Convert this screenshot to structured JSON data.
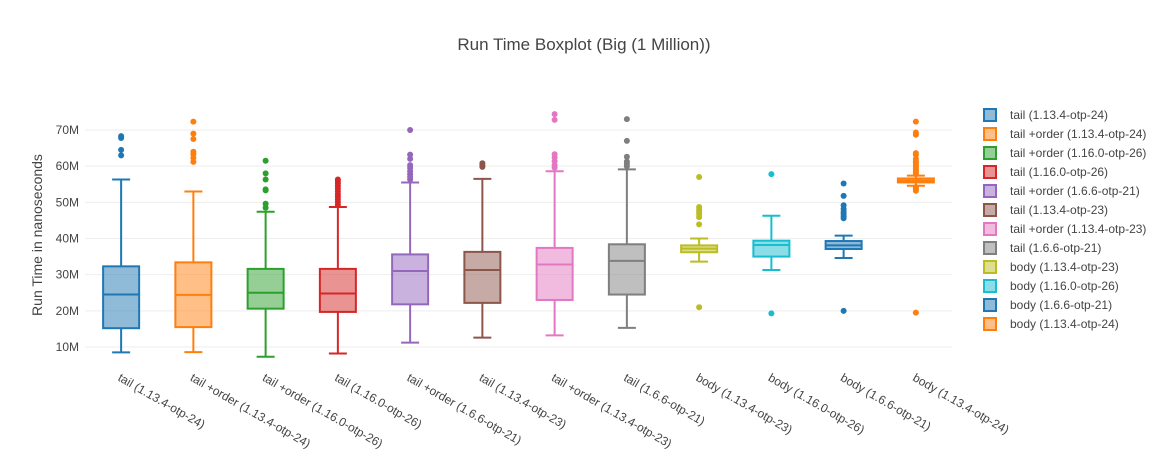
{
  "chart_data": {
    "type": "box",
    "title": "Run Time Boxplot (Big (1 Million))",
    "xlabel": "",
    "ylabel": "Run Time in nanoseconds",
    "ylim": [
      5,
      78
    ],
    "y_ticks": [
      10,
      20,
      30,
      40,
      50,
      60,
      70
    ],
    "y_tick_labels": [
      "10M",
      "20M",
      "30M",
      "40M",
      "50M",
      "60M",
      "70M"
    ],
    "grid": true,
    "legend_position": "right",
    "series": [
      {
        "name": "tail (1.13.4-otp-24)",
        "color": "#1f77b4",
        "min": 8.5,
        "q1": 15.2,
        "median": 24.5,
        "q3": 32.3,
        "max": 56.3,
        "outliers": [
          63.0,
          64.5,
          67.8,
          68.3
        ]
      },
      {
        "name": "tail +order (1.13.4-otp-24)",
        "color": "#ff7f0e",
        "min": 8.6,
        "q1": 15.5,
        "median": 24.4,
        "q3": 33.4,
        "max": 53.0,
        "outliers": [
          61.2,
          62.3,
          63.3,
          64.0,
          67.5,
          69.0,
          72.3
        ]
      },
      {
        "name": "tail +order (1.16.0-otp-26)",
        "color": "#2ca02c",
        "min": 7.3,
        "q1": 20.6,
        "median": 25.0,
        "q3": 31.6,
        "max": 47.4,
        "outliers": [
          48.5,
          49.6,
          53.3,
          53.6,
          56.3,
          58.0,
          61.5
        ]
      },
      {
        "name": "tail (1.16.0-otp-26)",
        "color": "#d62728",
        "min": 8.2,
        "q1": 19.7,
        "median": 24.8,
        "q3": 31.6,
        "max": 48.7,
        "outliers": [
          49.3,
          50.1,
          50.8,
          51.5,
          52.2,
          53.0,
          53.8,
          54.5,
          55.2,
          55.8,
          56.3
        ]
      },
      {
        "name": "tail +order (1.6.6-otp-21)",
        "color": "#9467bd",
        "min": 11.2,
        "q1": 21.8,
        "median": 31.0,
        "q3": 35.6,
        "max": 55.5,
        "outliers": [
          56.3,
          57.0,
          57.8,
          58.6,
          59.5,
          60.3,
          62.0,
          63.2,
          70.0
        ]
      },
      {
        "name": "tail (1.13.4-otp-23)",
        "color": "#8c564b",
        "min": 12.6,
        "q1": 22.2,
        "median": 31.3,
        "q3": 36.3,
        "max": 56.5,
        "outliers": [
          59.8,
          60.3,
          60.8
        ]
      },
      {
        "name": "tail +order (1.13.4-otp-23)",
        "color": "#e377c2",
        "min": 13.2,
        "q1": 23.0,
        "median": 32.8,
        "q3": 37.4,
        "max": 58.6,
        "outliers": [
          59.6,
          60.3,
          61.4,
          62.4,
          63.3,
          72.8,
          74.4
        ]
      },
      {
        "name": "tail (1.6.6-otp-21)",
        "color": "#7f7f7f",
        "min": 15.3,
        "q1": 24.5,
        "median": 33.8,
        "q3": 38.4,
        "max": 59.1,
        "outliers": [
          60.0,
          60.7,
          61.3,
          62.6,
          67.0,
          73.0
        ]
      },
      {
        "name": "body (1.13.4-otp-23)",
        "color": "#bcbd22",
        "min": 33.6,
        "q1": 36.2,
        "median": 37.2,
        "q3": 38.1,
        "max": 40.0,
        "outliers": [
          21.0,
          43.9,
          45.9,
          46.7,
          47.4,
          48.0,
          48.7,
          57.0
        ]
      },
      {
        "name": "body (1.16.0-otp-26)",
        "color": "#17becf",
        "min": 31.3,
        "q1": 35.0,
        "median": 38.2,
        "q3": 39.4,
        "max": 46.3,
        "outliers": [
          19.3,
          57.8
        ]
      },
      {
        "name": "body (1.6.6-otp-21)",
        "color": "#1f77b4",
        "min": 34.6,
        "q1": 37.1,
        "median": 38.1,
        "q3": 39.3,
        "max": 40.8,
        "outliers": [
          20.0,
          45.6,
          46.2,
          46.8,
          47.4,
          48.2,
          49.2,
          51.8,
          55.2
        ]
      },
      {
        "name": "body (1.13.4-otp-24)",
        "color": "#ff7f0e",
        "min": 54.6,
        "q1": 55.5,
        "median": 56.0,
        "q3": 56.6,
        "max": 57.4,
        "outliers": [
          19.5,
          53.2,
          53.6,
          53.9,
          54.2,
          57.8,
          58.2,
          58.6,
          59.0,
          59.4,
          59.8,
          60.2,
          60.6,
          61.0,
          61.4,
          62.0,
          63.2,
          63.6,
          68.7,
          69.3,
          72.3
        ]
      }
    ]
  }
}
